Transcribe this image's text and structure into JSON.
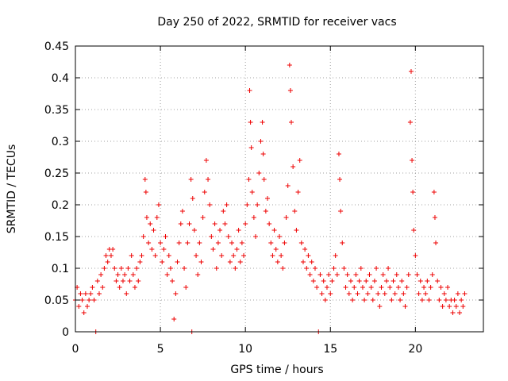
{
  "chart_data": {
    "type": "scatter",
    "title": "Day 250 of 2022, SRMTID for receiver vacs",
    "xlabel": "GPS time / hours",
    "ylabel": "SRMTID / TECUs",
    "xlim": [
      0,
      24
    ],
    "ylim": [
      0,
      0.45
    ],
    "xticks": [
      0,
      5,
      10,
      15,
      20
    ],
    "xtick_labels": [
      "0",
      "5",
      "10",
      "15",
      "20"
    ],
    "yticks": [
      0,
      0.05,
      0.1,
      0.15,
      0.2,
      0.25,
      0.3,
      0.35,
      0.4,
      0.45
    ],
    "ytick_labels": [
      "0",
      "0.05",
      "0.1",
      "0.15",
      "0.2",
      "0.25",
      "0.3",
      "0.35",
      "0.4",
      "0.45"
    ],
    "grid": true,
    "marker": "+",
    "series": [
      {
        "name": "SRMTID",
        "color": "#ee0000",
        "points": [
          [
            0.0,
            0.05
          ],
          [
            0.1,
            0.07
          ],
          [
            0.2,
            0.04
          ],
          [
            0.3,
            0.06
          ],
          [
            0.4,
            0.05
          ],
          [
            0.5,
            0.03
          ],
          [
            0.6,
            0.06
          ],
          [
            0.7,
            0.04
          ],
          [
            0.8,
            0.05
          ],
          [
            0.9,
            0.06
          ],
          [
            1.0,
            0.07
          ],
          [
            1.1,
            0.05
          ],
          [
            1.2,
            0.0
          ],
          [
            1.3,
            0.08
          ],
          [
            1.4,
            0.06
          ],
          [
            1.5,
            0.09
          ],
          [
            1.6,
            0.07
          ],
          [
            1.7,
            0.1
          ],
          [
            1.8,
            0.12
          ],
          [
            1.9,
            0.11
          ],
          [
            2.0,
            0.13
          ],
          [
            2.1,
            0.12
          ],
          [
            2.2,
            0.13
          ],
          [
            2.3,
            0.1
          ],
          [
            2.4,
            0.08
          ],
          [
            2.5,
            0.09
          ],
          [
            2.6,
            0.07
          ],
          [
            2.7,
            0.1
          ],
          [
            2.8,
            0.08
          ],
          [
            2.9,
            0.09
          ],
          [
            3.0,
            0.06
          ],
          [
            3.1,
            0.1
          ],
          [
            3.2,
            0.08
          ],
          [
            3.3,
            0.12
          ],
          [
            3.4,
            0.09
          ],
          [
            3.5,
            0.07
          ],
          [
            3.6,
            0.1
          ],
          [
            3.7,
            0.08
          ],
          [
            3.8,
            0.11
          ],
          [
            3.9,
            0.12
          ],
          [
            4.0,
            0.15
          ],
          [
            4.1,
            0.24
          ],
          [
            4.15,
            0.22
          ],
          [
            4.2,
            0.18
          ],
          [
            4.3,
            0.14
          ],
          [
            4.4,
            0.17
          ],
          [
            4.5,
            0.13
          ],
          [
            4.6,
            0.16
          ],
          [
            4.7,
            0.12
          ],
          [
            4.8,
            0.18
          ],
          [
            4.9,
            0.2
          ],
          [
            5.0,
            0.14
          ],
          [
            5.1,
            0.11
          ],
          [
            5.2,
            0.13
          ],
          [
            5.3,
            0.15
          ],
          [
            5.4,
            0.09
          ],
          [
            5.5,
            0.12
          ],
          [
            5.6,
            0.1
          ],
          [
            5.7,
            0.08
          ],
          [
            5.8,
            0.02
          ],
          [
            5.9,
            0.06
          ],
          [
            6.0,
            0.11
          ],
          [
            6.1,
            0.14
          ],
          [
            6.2,
            0.17
          ],
          [
            6.3,
            0.19
          ],
          [
            6.4,
            0.1
          ],
          [
            6.5,
            0.07
          ],
          [
            6.6,
            0.14
          ],
          [
            6.7,
            0.17
          ],
          [
            6.8,
            0.24
          ],
          [
            6.85,
            0.0
          ],
          [
            6.9,
            0.21
          ],
          [
            7.0,
            0.16
          ],
          [
            7.1,
            0.12
          ],
          [
            7.2,
            0.09
          ],
          [
            7.3,
            0.14
          ],
          [
            7.4,
            0.11
          ],
          [
            7.5,
            0.18
          ],
          [
            7.6,
            0.22
          ],
          [
            7.7,
            0.27
          ],
          [
            7.8,
            0.24
          ],
          [
            7.9,
            0.2
          ],
          [
            8.0,
            0.15
          ],
          [
            8.1,
            0.13
          ],
          [
            8.2,
            0.17
          ],
          [
            8.3,
            0.1
          ],
          [
            8.4,
            0.14
          ],
          [
            8.5,
            0.16
          ],
          [
            8.6,
            0.12
          ],
          [
            8.7,
            0.19
          ],
          [
            8.8,
            0.17
          ],
          [
            8.9,
            0.2
          ],
          [
            9.0,
            0.15
          ],
          [
            9.1,
            0.11
          ],
          [
            9.2,
            0.14
          ],
          [
            9.3,
            0.12
          ],
          [
            9.4,
            0.1
          ],
          [
            9.5,
            0.13
          ],
          [
            9.6,
            0.16
          ],
          [
            9.7,
            0.11
          ],
          [
            9.8,
            0.14
          ],
          [
            9.9,
            0.12
          ],
          [
            10.0,
            0.17
          ],
          [
            10.1,
            0.2
          ],
          [
            10.2,
            0.24
          ],
          [
            10.25,
            0.38
          ],
          [
            10.3,
            0.33
          ],
          [
            10.35,
            0.29
          ],
          [
            10.4,
            0.22
          ],
          [
            10.5,
            0.18
          ],
          [
            10.6,
            0.15
          ],
          [
            10.7,
            0.2
          ],
          [
            10.8,
            0.25
          ],
          [
            10.9,
            0.3
          ],
          [
            11.0,
            0.33
          ],
          [
            11.05,
            0.28
          ],
          [
            11.1,
            0.24
          ],
          [
            11.2,
            0.19
          ],
          [
            11.3,
            0.21
          ],
          [
            11.4,
            0.17
          ],
          [
            11.5,
            0.14
          ],
          [
            11.6,
            0.12
          ],
          [
            11.7,
            0.16
          ],
          [
            11.8,
            0.13
          ],
          [
            11.9,
            0.11
          ],
          [
            12.0,
            0.15
          ],
          [
            12.1,
            0.12
          ],
          [
            12.2,
            0.1
          ],
          [
            12.3,
            0.14
          ],
          [
            12.4,
            0.18
          ],
          [
            12.5,
            0.23
          ],
          [
            12.6,
            0.42
          ],
          [
            12.65,
            0.38
          ],
          [
            12.7,
            0.33
          ],
          [
            12.8,
            0.26
          ],
          [
            12.9,
            0.19
          ],
          [
            13.0,
            0.16
          ],
          [
            13.1,
            0.22
          ],
          [
            13.2,
            0.27
          ],
          [
            13.3,
            0.14
          ],
          [
            13.4,
            0.11
          ],
          [
            13.5,
            0.13
          ],
          [
            13.6,
            0.1
          ],
          [
            13.7,
            0.12
          ],
          [
            13.8,
            0.09
          ],
          [
            13.9,
            0.11
          ],
          [
            14.0,
            0.08
          ],
          [
            14.1,
            0.1
          ],
          [
            14.2,
            0.07
          ],
          [
            14.3,
            0.0
          ],
          [
            14.4,
            0.09
          ],
          [
            14.5,
            0.06
          ],
          [
            14.6,
            0.08
          ],
          [
            14.7,
            0.05
          ],
          [
            14.8,
            0.07
          ],
          [
            14.9,
            0.09
          ],
          [
            15.0,
            0.06
          ],
          [
            15.1,
            0.08
          ],
          [
            15.2,
            0.1
          ],
          [
            15.3,
            0.12
          ],
          [
            15.4,
            0.09
          ],
          [
            15.5,
            0.28
          ],
          [
            15.55,
            0.24
          ],
          [
            15.6,
            0.19
          ],
          [
            15.7,
            0.14
          ],
          [
            15.8,
            0.1
          ],
          [
            15.9,
            0.07
          ],
          [
            16.0,
            0.09
          ],
          [
            16.1,
            0.06
          ],
          [
            16.2,
            0.08
          ],
          [
            16.3,
            0.05
          ],
          [
            16.4,
            0.07
          ],
          [
            16.5,
            0.09
          ],
          [
            16.6,
            0.06
          ],
          [
            16.7,
            0.08
          ],
          [
            16.8,
            0.1
          ],
          [
            16.9,
            0.07
          ],
          [
            17.0,
            0.05
          ],
          [
            17.1,
            0.08
          ],
          [
            17.2,
            0.06
          ],
          [
            17.3,
            0.09
          ],
          [
            17.4,
            0.07
          ],
          [
            17.5,
            0.05
          ],
          [
            17.6,
            0.08
          ],
          [
            17.7,
            0.1
          ],
          [
            17.8,
            0.06
          ],
          [
            17.9,
            0.04
          ],
          [
            18.0,
            0.07
          ],
          [
            18.1,
            0.09
          ],
          [
            18.2,
            0.06
          ],
          [
            18.3,
            0.08
          ],
          [
            18.4,
            0.1
          ],
          [
            18.5,
            0.07
          ],
          [
            18.6,
            0.05
          ],
          [
            18.7,
            0.08
          ],
          [
            18.8,
            0.06
          ],
          [
            18.9,
            0.09
          ],
          [
            19.0,
            0.07
          ],
          [
            19.1,
            0.05
          ],
          [
            19.2,
            0.08
          ],
          [
            19.3,
            0.06
          ],
          [
            19.4,
            0.04
          ],
          [
            19.5,
            0.07
          ],
          [
            19.6,
            0.09
          ],
          [
            19.7,
            0.33
          ],
          [
            19.75,
            0.41
          ],
          [
            19.8,
            0.27
          ],
          [
            19.85,
            0.22
          ],
          [
            19.9,
            0.16
          ],
          [
            20.0,
            0.12
          ],
          [
            20.1,
            0.09
          ],
          [
            20.2,
            0.06
          ],
          [
            20.3,
            0.08
          ],
          [
            20.4,
            0.05
          ],
          [
            20.5,
            0.07
          ],
          [
            20.6,
            0.06
          ],
          [
            20.7,
            0.08
          ],
          [
            20.8,
            0.05
          ],
          [
            20.9,
            0.07
          ],
          [
            21.0,
            0.09
          ],
          [
            21.1,
            0.22
          ],
          [
            21.15,
            0.18
          ],
          [
            21.2,
            0.14
          ],
          [
            21.3,
            0.08
          ],
          [
            21.4,
            0.05
          ],
          [
            21.5,
            0.07
          ],
          [
            21.6,
            0.04
          ],
          [
            21.7,
            0.06
          ],
          [
            21.8,
            0.05
          ],
          [
            21.9,
            0.07
          ],
          [
            22.0,
            0.04
          ],
          [
            22.1,
            0.05
          ],
          [
            22.2,
            0.03
          ],
          [
            22.3,
            0.05
          ],
          [
            22.4,
            0.04
          ],
          [
            22.5,
            0.06
          ],
          [
            22.6,
            0.03
          ],
          [
            22.7,
            0.05
          ],
          [
            22.8,
            0.04
          ],
          [
            22.9,
            0.06
          ]
        ]
      }
    ]
  }
}
